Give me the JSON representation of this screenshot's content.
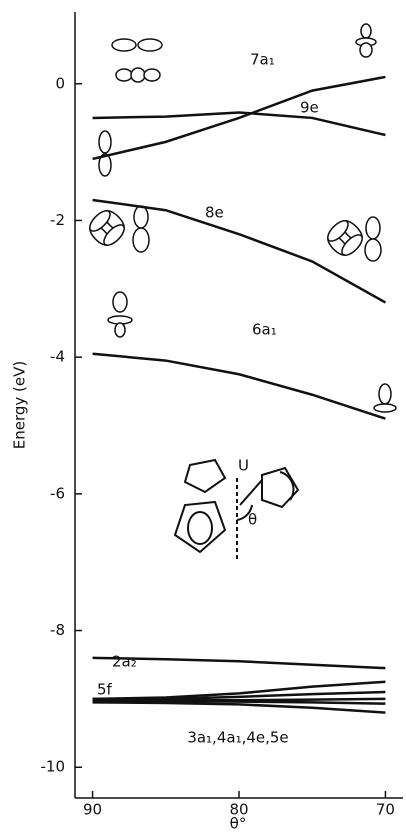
{
  "chart_data": {
    "type": "line",
    "x_label": "θ°",
    "y_label": "Energy (eV)",
    "x": [
      90,
      85,
      80,
      75,
      70
    ],
    "xlim": [
      91.2,
      68.8
    ],
    "xticks": [
      90,
      80,
      70
    ],
    "ylim": [
      -10.45,
      1.05
    ],
    "yticks": [
      0,
      -2,
      -4,
      -6,
      -8,
      -10
    ],
    "color": "#111111",
    "series": [
      {
        "name": "7a₁",
        "values": [
          -1.1,
          -0.85,
          -0.5,
          -0.1,
          0.1
        ]
      },
      {
        "name": "9e",
        "values": [
          -0.5,
          -0.48,
          -0.42,
          -0.5,
          -0.75
        ]
      },
      {
        "name": "8e",
        "values": [
          -1.7,
          -1.85,
          -2.2,
          -2.6,
          -3.2
        ]
      },
      {
        "name": "6a₁",
        "values": [
          -3.95,
          -4.05,
          -4.25,
          -4.55,
          -4.9
        ]
      },
      {
        "name": "2a₂",
        "values": [
          -8.4,
          -8.42,
          -8.45,
          -8.5,
          -8.55
        ]
      },
      {
        "values": [
          -9.0,
          -8.98,
          -8.92,
          -8.82,
          -8.75
        ]
      },
      {
        "values": [
          -9.0,
          -9.0,
          -8.97,
          -8.93,
          -8.9
        ]
      },
      {
        "values": [
          -9.02,
          -9.02,
          -9.02,
          -9.01,
          -9.0
        ]
      },
      {
        "values": [
          -9.03,
          -9.03,
          -9.04,
          -9.05,
          -9.07
        ]
      },
      {
        "values": [
          -9.05,
          -9.06,
          -9.08,
          -9.13,
          -9.2
        ]
      }
    ],
    "annotations": [
      "5f",
      "3a₁,4a₁,4e,5e"
    ]
  }
}
